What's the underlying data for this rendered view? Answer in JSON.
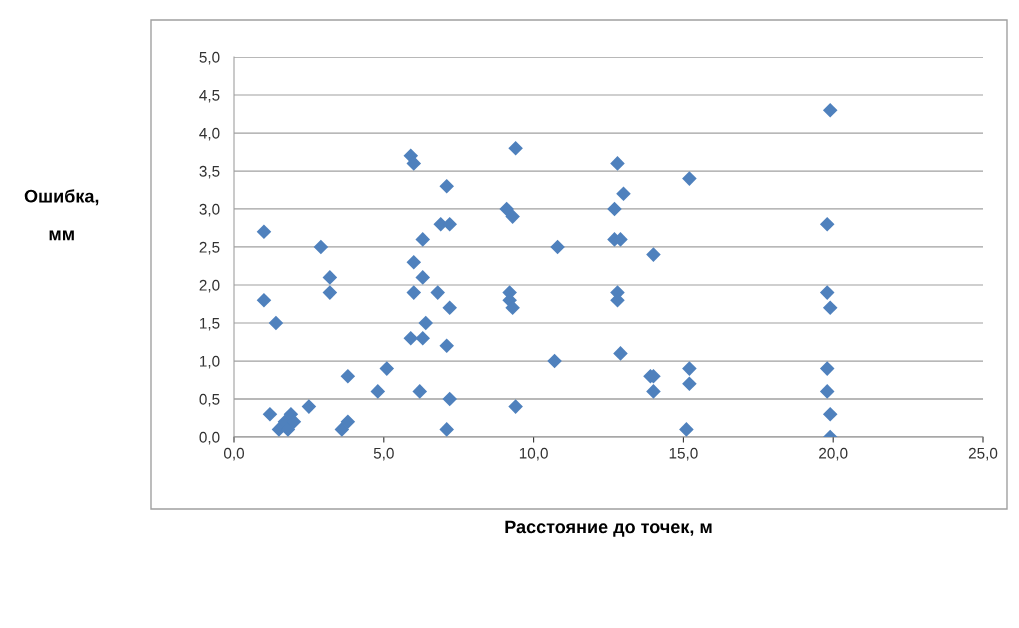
{
  "chart_data": {
    "type": "scatter",
    "xlabel": "Расстояние до точек, м",
    "ylabel": "Ошибка,\nмм",
    "x": [
      1.0,
      1.0,
      1.2,
      1.4,
      1.5,
      1.7,
      1.8,
      1.9,
      2.0,
      2.5,
      2.9,
      3.2,
      3.2,
      3.6,
      3.8,
      3.8,
      4.8,
      5.1,
      5.9,
      6.0,
      6.0,
      6.0,
      5.9,
      6.2,
      6.3,
      6.3,
      6.3,
      6.4,
      6.8,
      6.9,
      7.1,
      7.2,
      7.1,
      7.1,
      7.2,
      7.2,
      9.1,
      9.3,
      9.4,
      9.2,
      9.2,
      9.3,
      9.4,
      10.7,
      10.8,
      12.8,
      12.7,
      12.7,
      12.9,
      13.0,
      12.8,
      12.8,
      12.9,
      13.9,
      14.0,
      14.0,
      14.0,
      15.2,
      15.2,
      15.2,
      15.1,
      19.9,
      19.8,
      19.8,
      19.9,
      19.8,
      19.8,
      19.9,
      19.9
    ],
    "series": [
      {
        "color": "#4f81bd",
        "values": [
          2.7,
          1.8,
          0.3,
          1.5,
          0.1,
          0.2,
          0.1,
          0.3,
          0.2,
          0.4,
          2.5,
          2.1,
          1.9,
          0.1,
          0.2,
          0.8,
          0.6,
          0.9,
          3.7,
          3.6,
          2.3,
          1.9,
          1.3,
          0.6,
          2.1,
          2.6,
          1.3,
          1.5,
          1.9,
          2.8,
          3.3,
          2.8,
          1.2,
          0.1,
          0.5,
          1.7,
          3.0,
          2.9,
          3.8,
          1.9,
          1.8,
          1.7,
          0.4,
          1.0,
          2.5,
          3.6,
          3.0,
          2.6,
          2.6,
          3.2,
          1.9,
          1.8,
          1.1,
          0.8,
          0.8,
          0.6,
          2.4,
          3.4,
          0.9,
          0.7,
          0.1,
          4.3,
          2.8,
          1.9,
          1.7,
          0.9,
          0.6,
          0.3,
          0.0
        ]
      }
    ],
    "marker": "diamond",
    "grid": "y",
    "xlim": [
      0,
      25
    ],
    "xticks": [
      {
        "value": 0,
        "label": "0,0"
      },
      {
        "value": 5,
        "label": "5,0"
      },
      {
        "value": 10,
        "label": "10,0"
      },
      {
        "value": 15,
        "label": "15,0"
      },
      {
        "value": 20,
        "label": "20,0"
      },
      {
        "value": 25,
        "label": "25,0"
      }
    ],
    "ylim": [
      0,
      5
    ],
    "yticks": [
      {
        "value": 0,
        "label": "0,0"
      },
      {
        "value": 0.5,
        "label": "0,5"
      },
      {
        "value": 1,
        "label": "1,0"
      },
      {
        "value": 1.5,
        "label": "1,5"
      },
      {
        "value": 2,
        "label": "2,0"
      },
      {
        "value": 2.5,
        "label": "2,5"
      },
      {
        "value": 3,
        "label": "3,0"
      },
      {
        "value": 3.5,
        "label": "3,5"
      },
      {
        "value": 4,
        "label": "4,0"
      },
      {
        "value": 4.5,
        "label": "4,5"
      },
      {
        "value": 5,
        "label": "5,0"
      }
    ]
  }
}
